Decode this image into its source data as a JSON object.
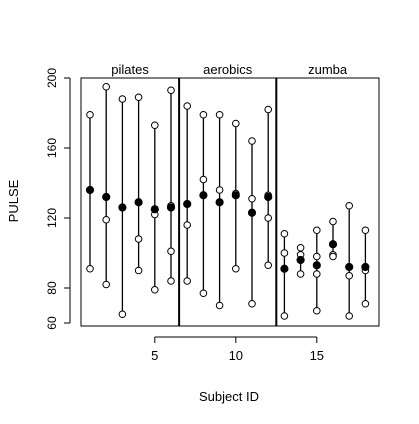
{
  "chart_data": {
    "type": "scatter",
    "title": "",
    "xlabel": "Subject ID",
    "ylabel": "PULSE",
    "xlim": [
      0.5,
      18.5
    ],
    "ylim": [
      58,
      202
    ],
    "x_ticks": [
      5,
      10,
      15
    ],
    "y_ticks": [
      60,
      80,
      120,
      160,
      200
    ],
    "grid": false,
    "legend": "none",
    "panels": [
      {
        "label": "pilates",
        "subjects": [
          1,
          2,
          3,
          4,
          5,
          6
        ]
      },
      {
        "label": "aerobics",
        "subjects": [
          7,
          8,
          9,
          10,
          11,
          12
        ]
      },
      {
        "label": "zumba",
        "subjects": [
          13,
          14,
          15,
          16,
          17,
          18
        ]
      }
    ],
    "panel_dividers": [
      6.5,
      12.5
    ],
    "series": [
      {
        "marker": "filled-circle",
        "x": [
          1,
          2,
          3,
          4,
          5,
          6,
          7,
          8,
          9,
          10,
          11,
          12,
          13,
          14,
          15,
          16,
          17,
          18
        ],
        "values": [
          136,
          132,
          126,
          129,
          125,
          126,
          128,
          133,
          129,
          133,
          123,
          132,
          91,
          96,
          93,
          105,
          92,
          92
        ]
      },
      {
        "marker": "open-circle",
        "x": [
          1,
          1,
          2,
          2,
          2,
          3,
          3,
          4,
          4,
          4,
          5,
          5,
          5,
          6,
          6,
          6,
          6,
          7,
          7,
          7,
          8,
          8,
          8,
          9,
          9,
          9,
          10,
          10,
          10,
          10,
          11,
          11,
          11,
          12,
          12,
          12,
          12,
          13,
          13,
          13,
          14,
          14,
          14,
          15,
          15,
          15,
          15,
          16,
          16,
          16,
          17,
          17,
          17,
          18,
          18,
          18
        ],
        "values": [
          179,
          91,
          195,
          119,
          82,
          188,
          65,
          189,
          108,
          90,
          173,
          122,
          79,
          193,
          101,
          84,
          127,
          184,
          116,
          84,
          179,
          142,
          77,
          179,
          136,
          70,
          174,
          134,
          91,
          133,
          164,
          131,
          71,
          182,
          120,
          93,
          133,
          111,
          100,
          64,
          103,
          99,
          88,
          113,
          98,
          88,
          67,
          118,
          99,
          98,
          127,
          87,
          64,
          113,
          90,
          71
        ]
      }
    ]
  }
}
